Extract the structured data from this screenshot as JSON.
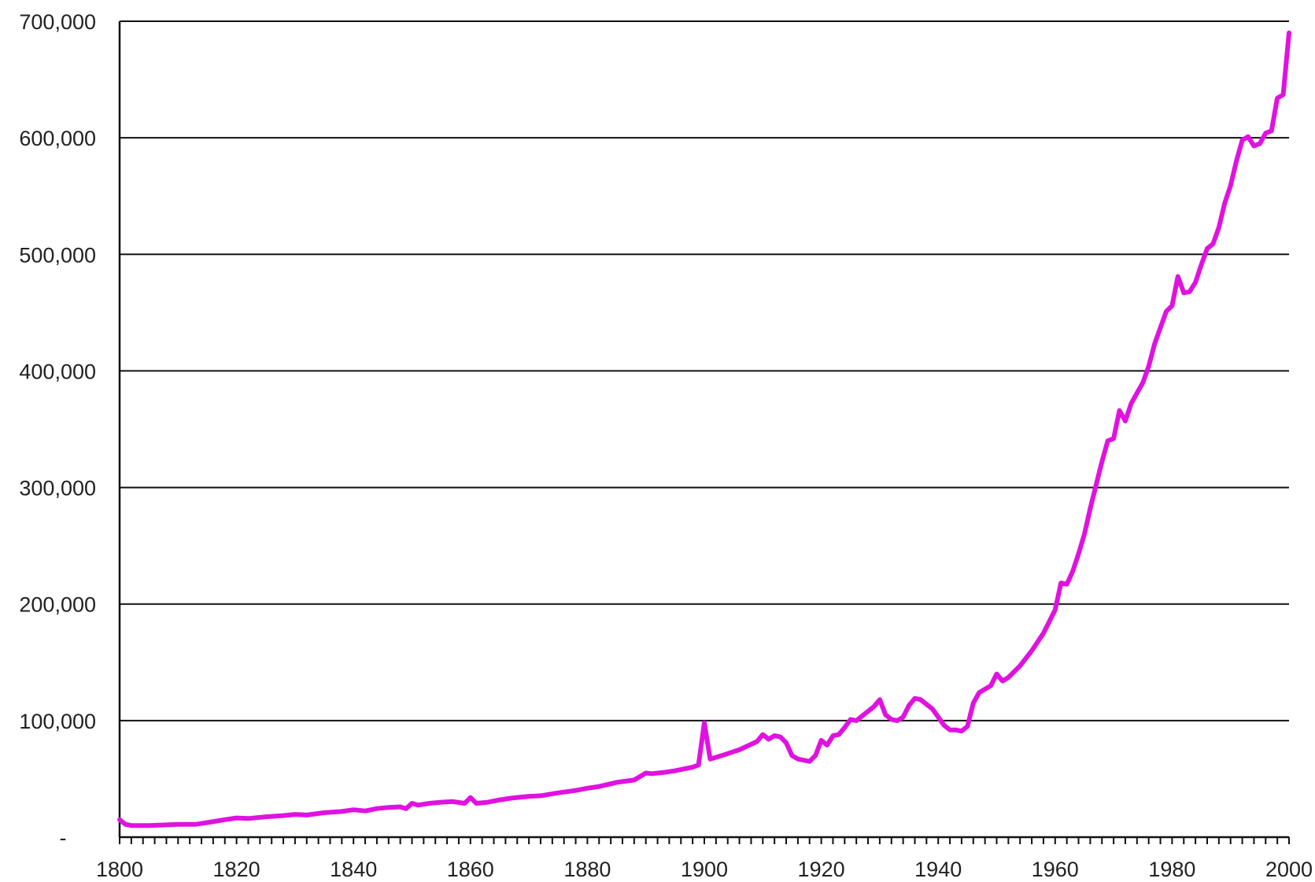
{
  "chart_data": {
    "type": "line",
    "title": "",
    "xlabel": "",
    "ylabel": "",
    "xlim": [
      1800,
      2000
    ],
    "ylim": [
      0,
      700000
    ],
    "grid": true,
    "legend": "none",
    "x_ticks": [
      {
        "value": 1800,
        "label": "1800"
      },
      {
        "value": 1820,
        "label": "1820"
      },
      {
        "value": 1840,
        "label": "1840"
      },
      {
        "value": 1860,
        "label": "1860"
      },
      {
        "value": 1880,
        "label": "1880"
      },
      {
        "value": 1900,
        "label": "1900"
      },
      {
        "value": 1920,
        "label": "1920"
      },
      {
        "value": 1940,
        "label": "1940"
      },
      {
        "value": 1960,
        "label": "1960"
      },
      {
        "value": 1980,
        "label": "1980"
      },
      {
        "value": 2000,
        "label": "2000"
      }
    ],
    "y_ticks": [
      {
        "value": 0,
        "label": "-"
      },
      {
        "value": 100000,
        "label": "100,000"
      },
      {
        "value": 200000,
        "label": "200,000"
      },
      {
        "value": 300000,
        "label": "300,000"
      },
      {
        "value": 400000,
        "label": "400,000"
      },
      {
        "value": 500000,
        "label": "500,000"
      },
      {
        "value": 600000,
        "label": "600,000"
      },
      {
        "value": 700000,
        "label": "700,000"
      }
    ],
    "colors": {
      "line": "#e012e0",
      "grid": "#111111",
      "axis": "#111111"
    },
    "series": [
      {
        "x": [
          1800,
          1801,
          1802,
          1805,
          1808,
          1810,
          1813,
          1815,
          1818,
          1820,
          1822,
          1825,
          1828,
          1830,
          1832,
          1835,
          1838,
          1840,
          1842,
          1844,
          1846,
          1848,
          1849,
          1850,
          1851,
          1853,
          1855,
          1857,
          1859,
          1860,
          1861,
          1863,
          1865,
          1867,
          1870,
          1872,
          1875,
          1878,
          1880,
          1882,
          1885,
          1888,
          1889,
          1890,
          1891,
          1893,
          1895,
          1898,
          1899,
          1900,
          1901,
          1903,
          1906,
          1909,
          1910,
          1911,
          1912,
          1913,
          1914,
          1915,
          1916,
          1918,
          1919,
          1920,
          1921,
          1922,
          1923,
          1924,
          1925,
          1926,
          1927,
          1929,
          1930,
          1931,
          1932,
          1933,
          1934,
          1935,
          1936,
          1937,
          1938,
          1939,
          1940,
          1941,
          1942,
          1943,
          1944,
          1945,
          1946,
          1947,
          1948,
          1949,
          1950,
          1951,
          1952,
          1954,
          1956,
          1958,
          1959,
          1960,
          1961,
          1962,
          1963,
          1964,
          1965,
          1966,
          1967,
          1968,
          1969,
          1970,
          1971,
          1972,
          1973,
          1974,
          1975,
          1976,
          1977,
          1978,
          1979,
          1980,
          1981,
          1982,
          1983,
          1984,
          1985,
          1986,
          1987,
          1988,
          1989,
          1990,
          1991,
          1992,
          1993,
          1994,
          1995,
          1996,
          1997,
          1998,
          1999,
          2000
        ],
        "values": [
          15000,
          11000,
          10000,
          10000,
          10500,
          11000,
          11000,
          12500,
          15000,
          16500,
          16000,
          17500,
          18500,
          19500,
          19000,
          21000,
          22000,
          23500,
          22500,
          24500,
          25500,
          26000,
          24500,
          29000,
          27500,
          29000,
          30000,
          30500,
          29000,
          34000,
          29000,
          30000,
          32000,
          33500,
          35000,
          35500,
          38000,
          40000,
          42000,
          43500,
          47000,
          49000,
          52000,
          55000,
          54500,
          55500,
          57000,
          60000,
          62000,
          98000,
          67000,
          70000,
          75000,
          82000,
          88000,
          84000,
          87000,
          86000,
          81000,
          70000,
          67000,
          65000,
          70000,
          83000,
          79000,
          87000,
          88000,
          94000,
          101000,
          100000,
          104000,
          112000,
          118000,
          105000,
          101000,
          100000,
          103000,
          113000,
          119000,
          118000,
          114000,
          110000,
          103000,
          96000,
          92000,
          92000,
          91000,
          95000,
          115000,
          124000,
          127000,
          130000,
          140000,
          134000,
          137000,
          147000,
          160000,
          175000,
          185000,
          195000,
          218000,
          217000,
          228000,
          243000,
          260000,
          282000,
          302000,
          322000,
          340000,
          342000,
          366000,
          357000,
          372000,
          381000,
          390000,
          404000,
          423000,
          437000,
          451000,
          456000,
          481000,
          467000,
          468000,
          476000,
          491000,
          505000,
          509000,
          523000,
          544000,
          559000,
          580000,
          598000,
          601000,
          593000,
          595000,
          604000,
          606000,
          634000,
          637000,
          690000
        ]
      }
    ]
  }
}
